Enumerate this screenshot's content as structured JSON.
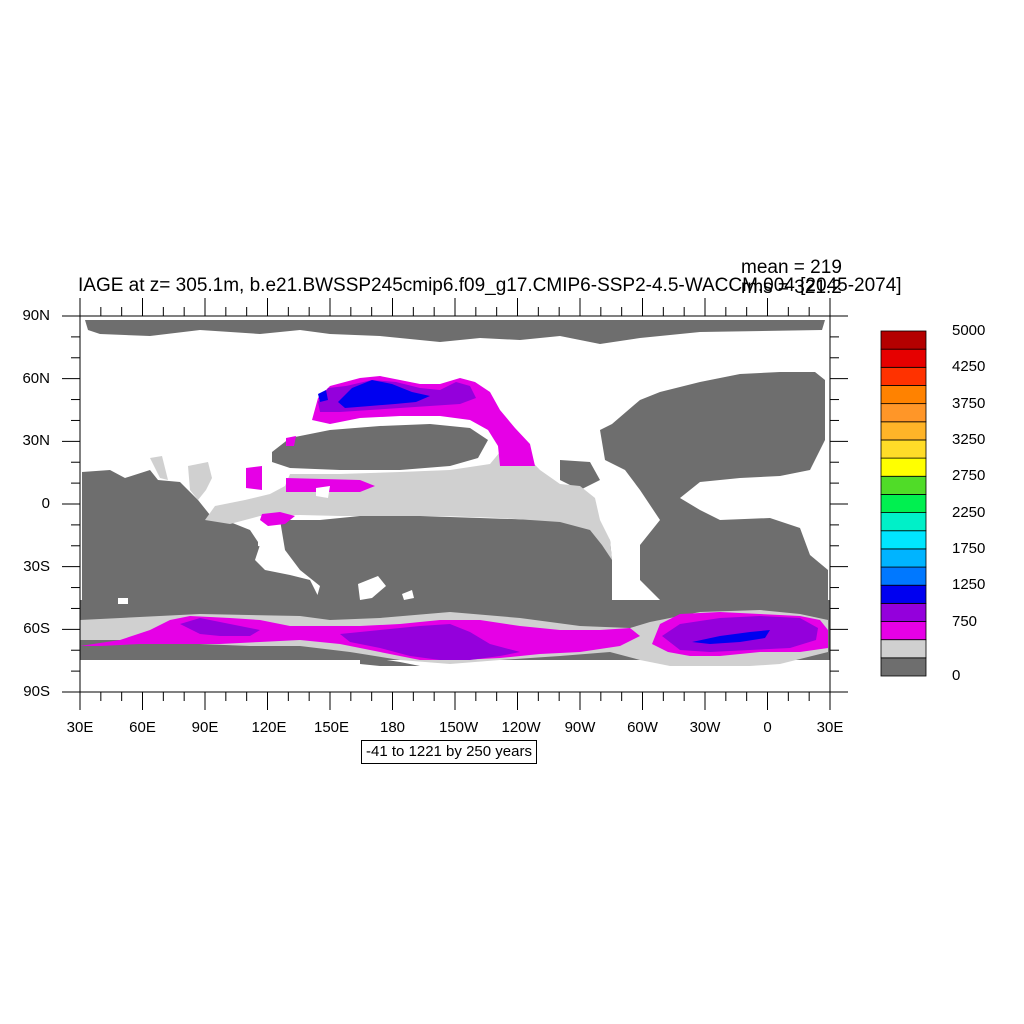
{
  "title": "IAGE at z= 305.1m, b.e21.BWSSP245cmip6.f09_g17.CMIP6-SSP2-4.5-WACCM.004 [2045-2074]",
  "stats": {
    "mean": "mean = 219",
    "rms": "rms = 321.2"
  },
  "range_label": "-41 to 1221 by 250 years",
  "lat_labels": [
    "90N",
    "60N",
    "30N",
    "0",
    "30S",
    "60S",
    "90S"
  ],
  "lon_labels": [
    "30E",
    "60E",
    "90E",
    "120E",
    "150E",
    "180",
    "150W",
    "120W",
    "90W",
    "60W",
    "30W",
    "0",
    "30E"
  ],
  "colorbar": {
    "colors": [
      "#6e6e6e",
      "#d0d0d0",
      "#e600e6",
      "#9400dc",
      "#0000f0",
      "#0078ff",
      "#00b4ff",
      "#00e6ff",
      "#00f0c8",
      "#00f050",
      "#50dc28",
      "#ffff00",
      "#ffdc28",
      "#ffb428",
      "#ff9628",
      "#ff8200",
      "#ff3200",
      "#e60000",
      "#b40000"
    ],
    "labels": [
      "0",
      "750",
      "1250",
      "1750",
      "2250",
      "2750",
      "3250",
      "3750",
      "4250",
      "5000"
    ]
  },
  "map": {
    "land_color": "#ffffff",
    "ocean_colors": {
      "level0": "#6e6e6e",
      "level1": "#d0d0d0",
      "level2": "#e600e6",
      "level3": "#9400dc",
      "level4": "#0000f0"
    }
  }
}
